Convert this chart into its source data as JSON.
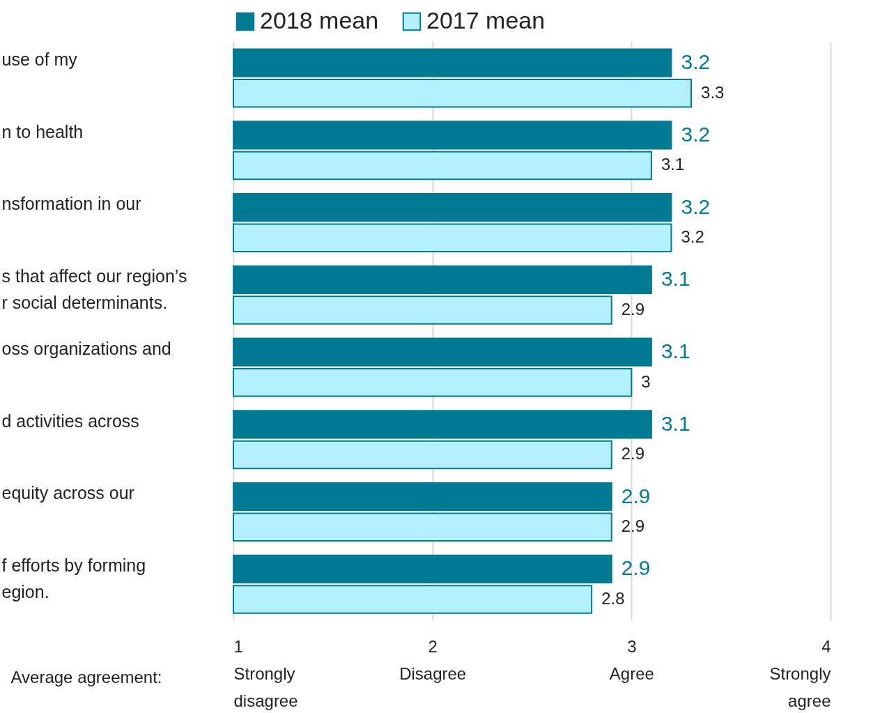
{
  "chart_data": {
    "type": "bar",
    "orientation": "horizontal",
    "categories": [
      "use of my",
      "n to health",
      "nsformation in our",
      "s that affect our region’s\nr social determinants.",
      "oss organizations and",
      "d activities across",
      "equity across our",
      "f efforts by forming\negion."
    ],
    "series": [
      {
        "name": "2018 mean",
        "color": "#007b93",
        "values": [
          3.2,
          3.2,
          3.2,
          3.1,
          3.1,
          3.1,
          2.9,
          2.9
        ]
      },
      {
        "name": "2017 mean",
        "color": "#b3f0fb",
        "values": [
          3.3,
          3.1,
          3.2,
          2.9,
          3,
          2.9,
          2.9,
          2.8
        ]
      }
    ],
    "xlim": [
      1,
      4
    ],
    "xticks": [
      {
        "value": 1,
        "label": "1\nStrongly\ndisagree"
      },
      {
        "value": 2,
        "label": "2\nDisagree"
      },
      {
        "value": 3,
        "label": "3\nAgree"
      },
      {
        "value": 4,
        "label": "4\nStrongly\nagree"
      }
    ],
    "xlabel": "Average agreement:",
    "data_labels": true,
    "grid": "x",
    "legend": "top"
  }
}
